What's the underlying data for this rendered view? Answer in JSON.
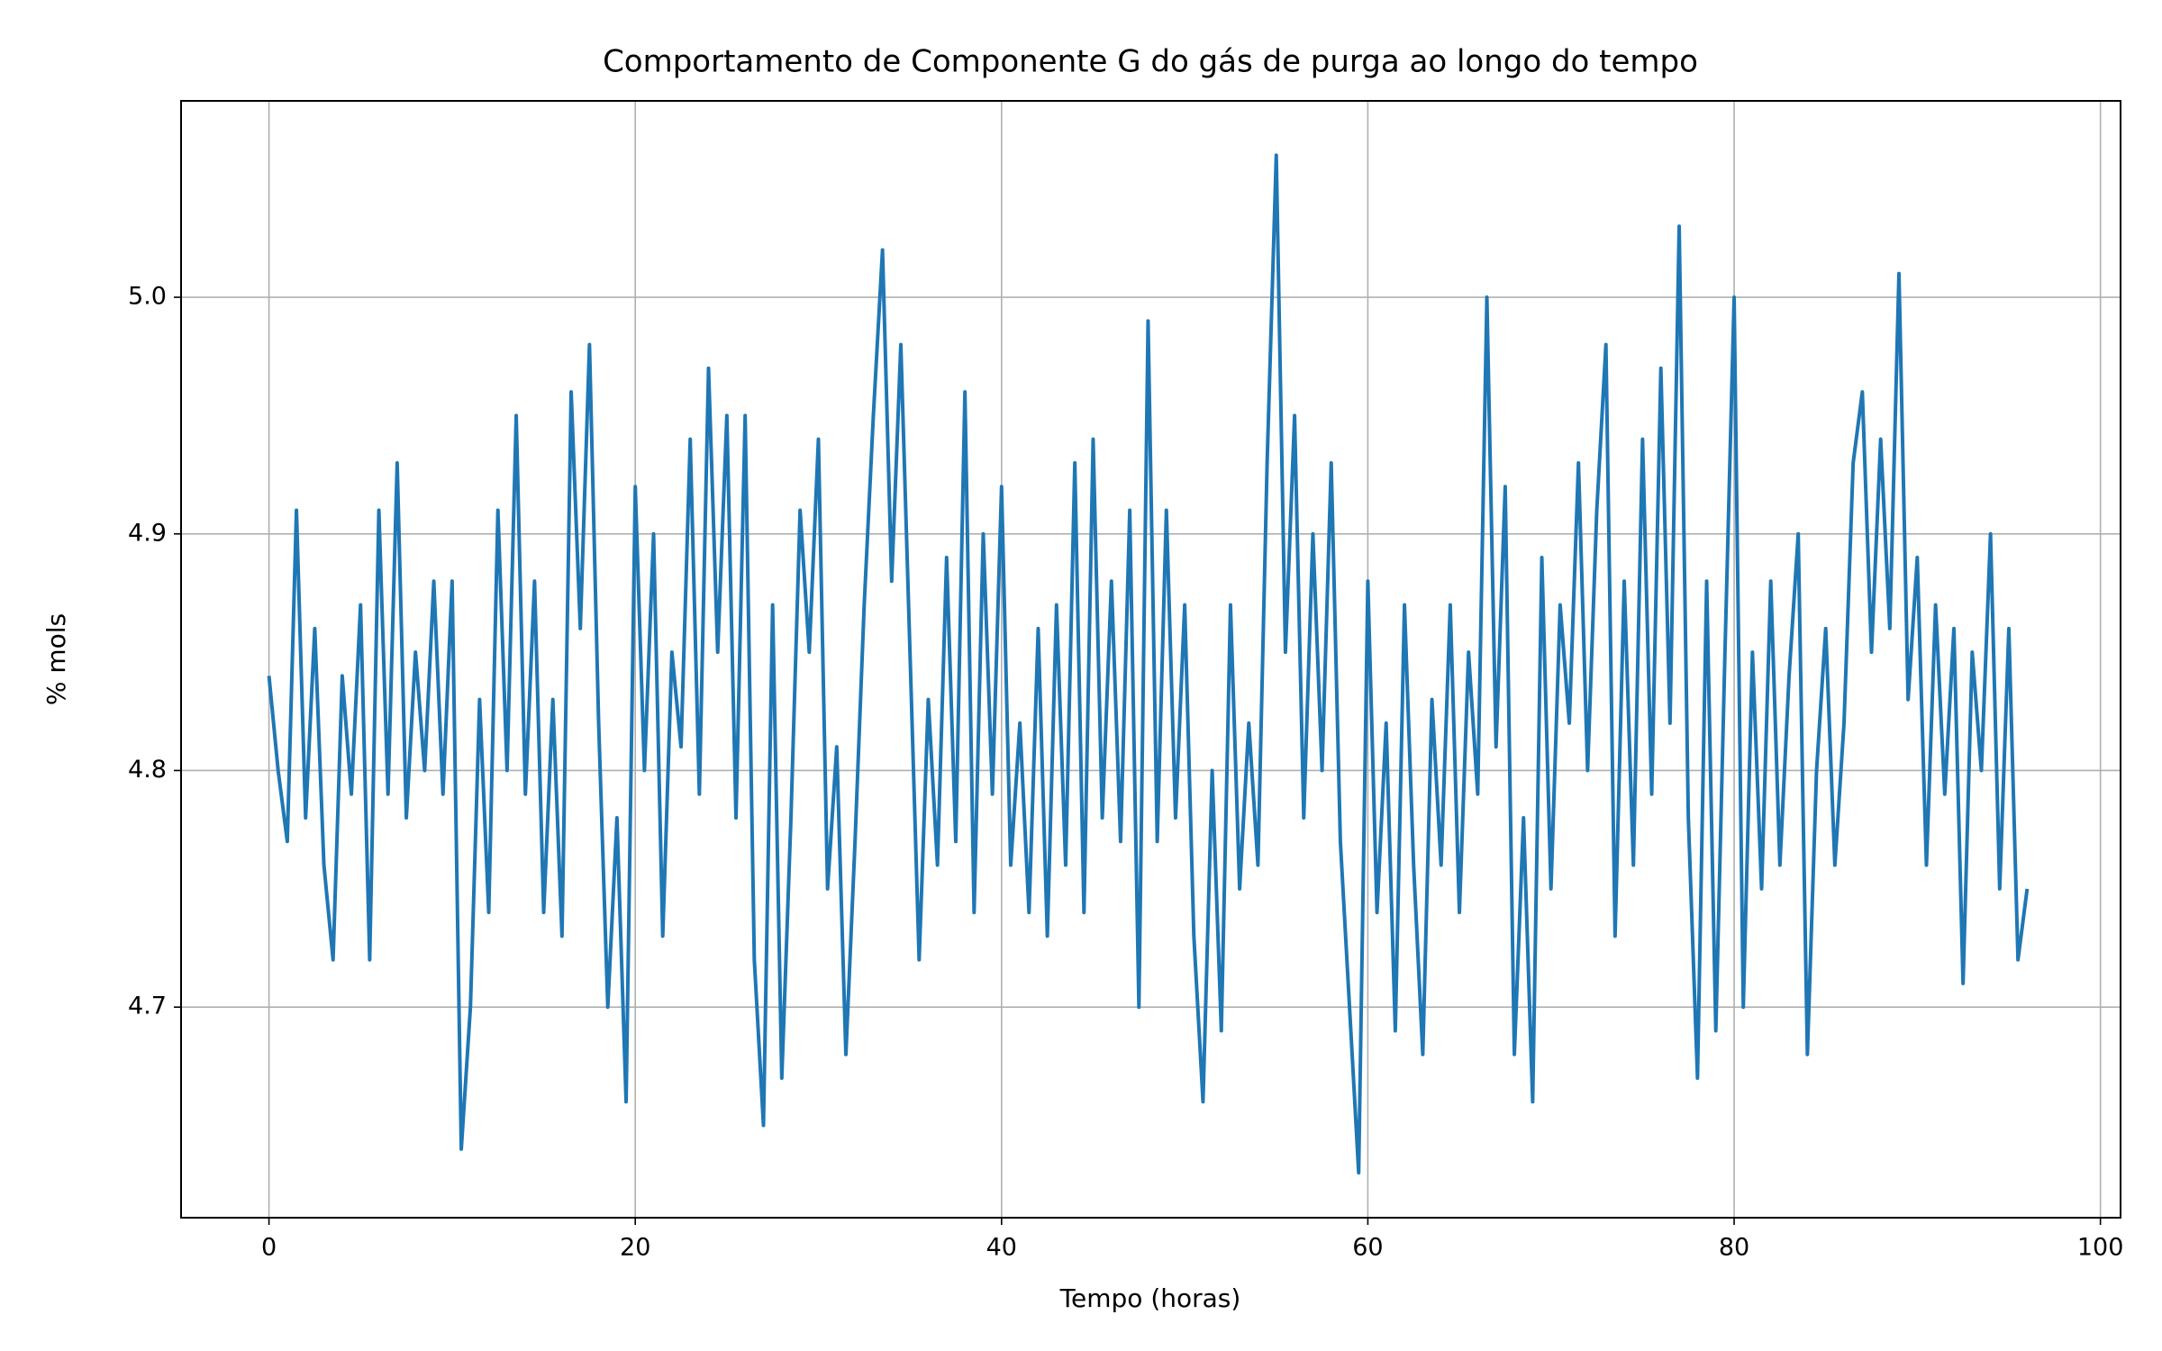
{
  "chart_data": {
    "type": "line",
    "title": "Comportamento de Componente G do gás de purga ao longo do tempo",
    "xlabel": "Tempo (horas)",
    "ylabel": "% mols",
    "x": [
      0,
      0.5,
      1,
      1.5,
      2,
      2.5,
      3,
      3.5,
      4,
      4.5,
      5,
      5.5,
      6,
      6.5,
      7,
      7.5,
      8,
      8.5,
      9,
      9.5,
      10,
      10.5,
      11,
      11.5,
      12,
      12.5,
      13,
      13.5,
      14,
      14.5,
      15,
      15.5,
      16,
      16.5,
      17,
      17.5,
      18,
      18.5,
      19,
      19.5,
      20,
      20.5,
      21,
      21.5,
      22,
      22.5,
      23,
      23.5,
      24,
      24.5,
      25,
      25.5,
      26,
      26.5,
      27,
      27.5,
      28,
      28.5,
      29,
      29.5,
      30,
      30.5,
      31,
      31.5,
      32,
      32.5,
      33,
      33.5,
      34,
      34.5,
      35,
      35.5,
      36,
      36.5,
      37,
      37.5,
      38,
      38.5,
      39,
      39.5,
      40,
      40.5,
      41,
      41.5,
      42,
      42.5,
      43,
      43.5,
      44,
      44.5,
      45,
      45.5,
      46,
      46.5,
      47,
      47.5,
      48,
      48.5,
      49,
      49.5,
      50,
      50.5,
      51,
      51.5,
      52,
      52.5,
      53,
      53.5,
      54,
      54.5,
      55,
      55.5,
      56,
      56.5,
      57,
      57.5,
      58,
      58.5,
      59,
      59.5,
      60,
      60.5,
      61,
      61.5,
      62,
      62.5,
      63,
      63.5,
      64,
      64.5,
      65,
      65.5,
      66,
      66.5,
      67,
      67.5,
      68,
      68.5,
      69,
      69.5,
      70,
      70.5,
      71,
      71.5,
      72,
      72.5,
      73,
      73.5,
      74,
      74.5,
      75,
      75.5,
      76,
      76.5,
      77,
      77.5,
      78,
      78.5,
      79,
      79.5,
      80,
      80.5,
      81,
      81.5,
      82,
      82.5,
      83,
      83.5,
      84,
      84.5,
      85,
      85.5,
      86,
      86.5,
      87,
      87.5,
      88,
      88.5,
      89,
      89.5,
      90,
      90.5,
      91,
      91.5,
      92,
      92.5,
      93,
      93.5,
      94,
      94.5,
      95,
      95.5,
      96
    ],
    "series": [
      {
        "name": "Componente G",
        "color": "#1f77b4",
        "values": [
          4.84,
          4.8,
          4.77,
          4.91,
          4.78,
          4.86,
          4.76,
          4.72,
          4.84,
          4.79,
          4.87,
          4.72,
          4.91,
          4.79,
          4.93,
          4.78,
          4.85,
          4.8,
          4.88,
          4.79,
          4.88,
          4.64,
          4.7,
          4.83,
          4.74,
          4.91,
          4.8,
          4.95,
          4.79,
          4.88,
          4.74,
          4.83,
          4.73,
          4.96,
          4.86,
          4.98,
          4.82,
          4.7,
          4.78,
          4.66,
          4.92,
          4.8,
          4.9,
          4.73,
          4.85,
          4.81,
          4.94,
          4.79,
          4.97,
          4.85,
          4.95,
          4.78,
          4.95,
          4.72,
          4.65,
          4.87,
          4.67,
          4.78,
          4.91,
          4.85,
          4.94,
          4.75,
          4.81,
          4.68,
          4.77,
          4.87,
          4.95,
          5.02,
          4.88,
          4.98,
          4.85,
          4.72,
          4.83,
          4.76,
          4.89,
          4.77,
          4.96,
          4.74,
          4.9,
          4.79,
          4.92,
          4.76,
          4.82,
          4.74,
          4.86,
          4.73,
          4.87,
          4.76,
          4.93,
          4.74,
          4.94,
          4.78,
          4.88,
          4.77,
          4.91,
          4.7,
          4.99,
          4.77,
          4.91,
          4.78,
          4.87,
          4.73,
          4.66,
          4.8,
          4.69,
          4.87,
          4.75,
          4.82,
          4.76,
          4.93,
          5.06,
          4.85,
          4.95,
          4.78,
          4.9,
          4.8,
          4.93,
          4.77,
          4.7,
          4.63,
          4.88,
          4.74,
          4.82,
          4.69,
          4.87,
          4.76,
          4.68,
          4.83,
          4.76,
          4.87,
          4.74,
          4.85,
          4.79,
          5.0,
          4.81,
          4.92,
          4.68,
          4.78,
          4.66,
          4.89,
          4.75,
          4.87,
          4.82,
          4.93,
          4.8,
          4.91,
          4.98,
          4.73,
          4.88,
          4.76,
          4.94,
          4.79,
          4.97,
          4.82,
          5.03,
          4.78,
          4.67,
          4.88,
          4.69,
          4.85,
          5.0,
          4.7,
          4.85,
          4.75,
          4.88,
          4.76,
          4.84,
          4.9,
          4.68,
          4.8,
          4.86,
          4.76,
          4.82,
          4.93,
          4.96,
          4.85,
          4.94,
          4.86,
          5.01,
          4.83,
          4.89,
          4.76,
          4.87,
          4.79,
          4.86,
          4.71,
          4.85,
          4.8,
          4.9,
          4.75,
          4.86,
          4.72,
          4.75
        ]
      }
    ],
    "xlim": [
      -4.8,
      101.1
    ],
    "ylim": [
      4.611,
      5.083
    ],
    "xticks": [
      0,
      20,
      40,
      60,
      80,
      100
    ],
    "yticks": [
      4.7,
      4.8,
      4.9,
      {
        "value": 5.0,
        "label": "5.0"
      }
    ],
    "grid": true
  }
}
